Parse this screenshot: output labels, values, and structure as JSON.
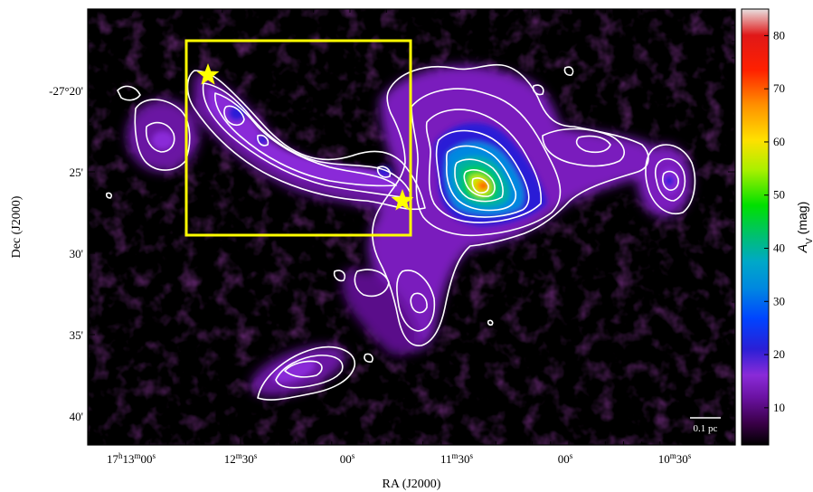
{
  "image": {
    "description_type": "astronomical extinction map",
    "colormap": [
      "#000000",
      "#3a0048",
      "#6b12a3",
      "#8a2bd8",
      "#2a1fd6",
      "#0044ff",
      "#00a8c8",
      "#00c070",
      "#00e000",
      "#a8f000",
      "#ffe000",
      "#ff9000",
      "#ff2000",
      "#e01818",
      "#e8e0e0"
    ],
    "contour_color": "#ffffff",
    "box_color": "#ffff00",
    "star_color": "#ffff00"
  },
  "axes": {
    "xlabel": "RA (J2000)",
    "ylabel": "Dec (J2000)",
    "xticks": [
      {
        "h": "17",
        "m": "13",
        "s": "00"
      },
      {
        "m": "12",
        "s": "30"
      },
      {
        "s": "00"
      },
      {
        "m": "11",
        "s": "30"
      },
      {
        "s": "00"
      },
      {
        "m": "10",
        "s": "30"
      }
    ],
    "yticks": [
      "-27°20'",
      "25'",
      "30'",
      "35'",
      "40'"
    ]
  },
  "colorbar": {
    "label_main": "A",
    "label_sub": "V",
    "label_unit": " (mag)",
    "ticks": [
      "10",
      "20",
      "30",
      "40",
      "50",
      "60",
      "70",
      "80"
    ],
    "min": 3,
    "max": 85
  },
  "scalebar": {
    "label": "0.1 pc"
  }
}
